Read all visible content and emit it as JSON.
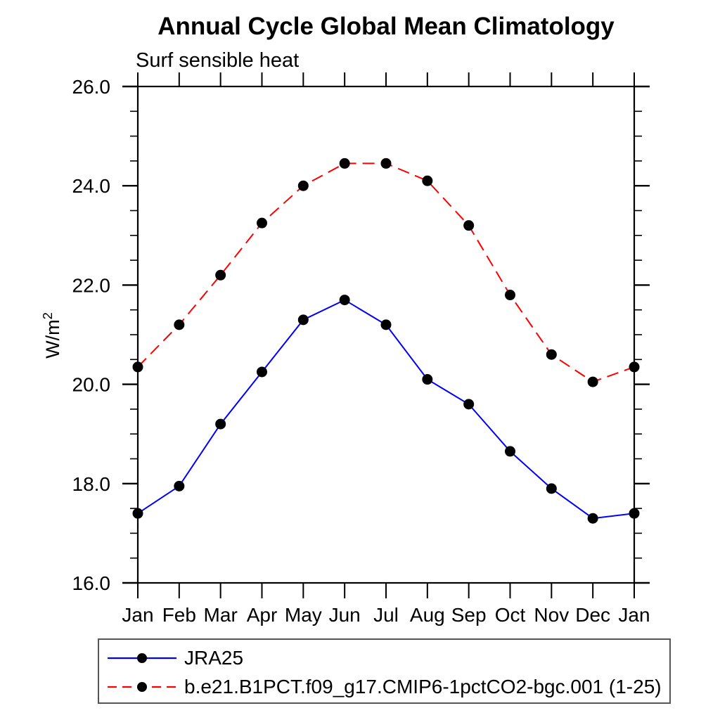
{
  "title": "Annual Cycle Global Mean Climatology",
  "subtitle": "Surf sensible heat",
  "ylabel": {
    "base": "W/m",
    "exp": "2"
  },
  "chart_data": {
    "type": "line",
    "categories": [
      "Jan",
      "Feb",
      "Mar",
      "Apr",
      "May",
      "Jun",
      "Jul",
      "Aug",
      "Sep",
      "Oct",
      "Nov",
      "Dec",
      "Jan"
    ],
    "series": [
      {
        "name": "JRA25",
        "color": "#0000ff",
        "line_style": "solid",
        "marker": "black-dot",
        "values": [
          17.4,
          17.95,
          19.2,
          20.25,
          21.3,
          21.7,
          21.2,
          20.1,
          19.6,
          18.65,
          17.9,
          17.3,
          17.4
        ]
      },
      {
        "name": "b.e21.B1PCT.f09_g17.CMIP6-1pctCO2-bgc.001 (1-25)",
        "color": "#ff0000",
        "line_style": "dashed",
        "marker": "black-dot",
        "values": [
          20.35,
          21.2,
          22.2,
          23.25,
          24.0,
          24.45,
          24.45,
          24.1,
          23.2,
          21.8,
          20.6,
          20.05,
          20.35
        ]
      }
    ],
    "xlabel": "",
    "ylabel": "W/m2",
    "ylim": [
      16.0,
      26.0
    ],
    "y_major_ticks": [
      16.0,
      18.0,
      20.0,
      22.0,
      24.0,
      26.0
    ],
    "y_tick_labels": [
      "16.0",
      "18.0",
      "20.0",
      "22.0",
      "24.0",
      "26.0"
    ],
    "y_minor_step": 0.5,
    "grid": false,
    "legend_position": "bottom-left",
    "marker_color": "#000000"
  }
}
